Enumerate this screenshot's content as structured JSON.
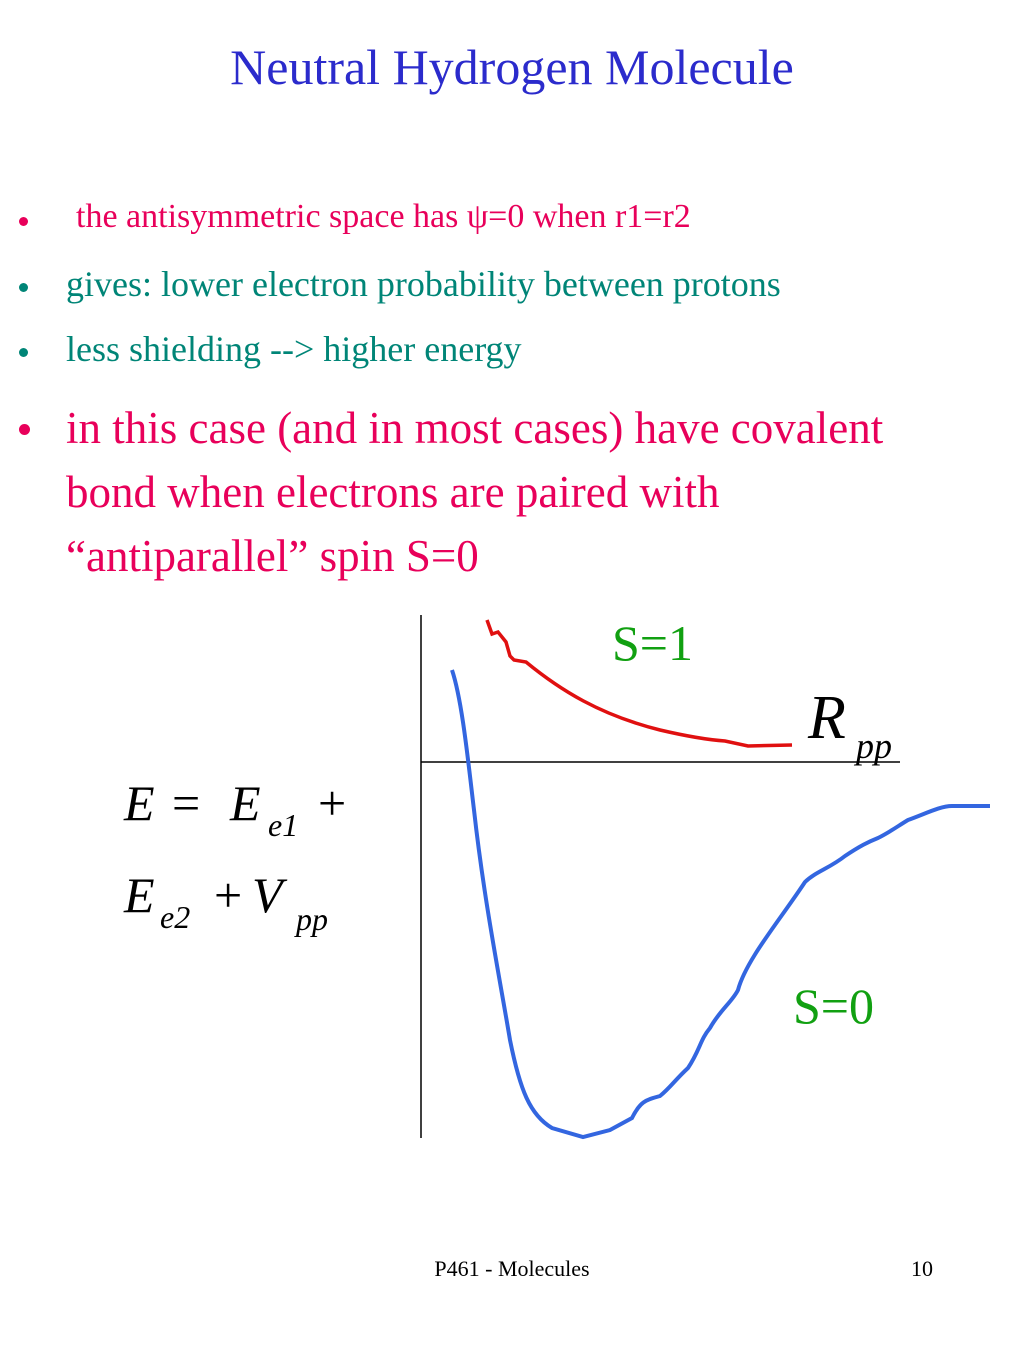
{
  "header": {
    "title": "Neutral Hydrogen Molecule"
  },
  "bullets": [
    "the antisymmetric space has ψ=0 when r1=r2",
    "gives: lower electron probability between protons",
    "less shielding --> higher energy",
    "in this case (and in most cases) have covalent bond when electrons are paired with “antiparallel” spin S=0"
  ],
  "equation": {
    "line1": {
      "lhs": "E",
      "eq": "=",
      "term": "E",
      "sub": "e1",
      "plus": "+"
    },
    "line2": {
      "term": "E",
      "sub": "e2",
      "plus": "+",
      "v": "V",
      "vsub": "pp"
    }
  },
  "diagram": {
    "upper_label": "S=1",
    "lower_label": "S=0",
    "axis_label": "R",
    "axis_label_sub": "pp"
  },
  "footer": {
    "text": "P461 - Molecules",
    "page": "10"
  }
}
